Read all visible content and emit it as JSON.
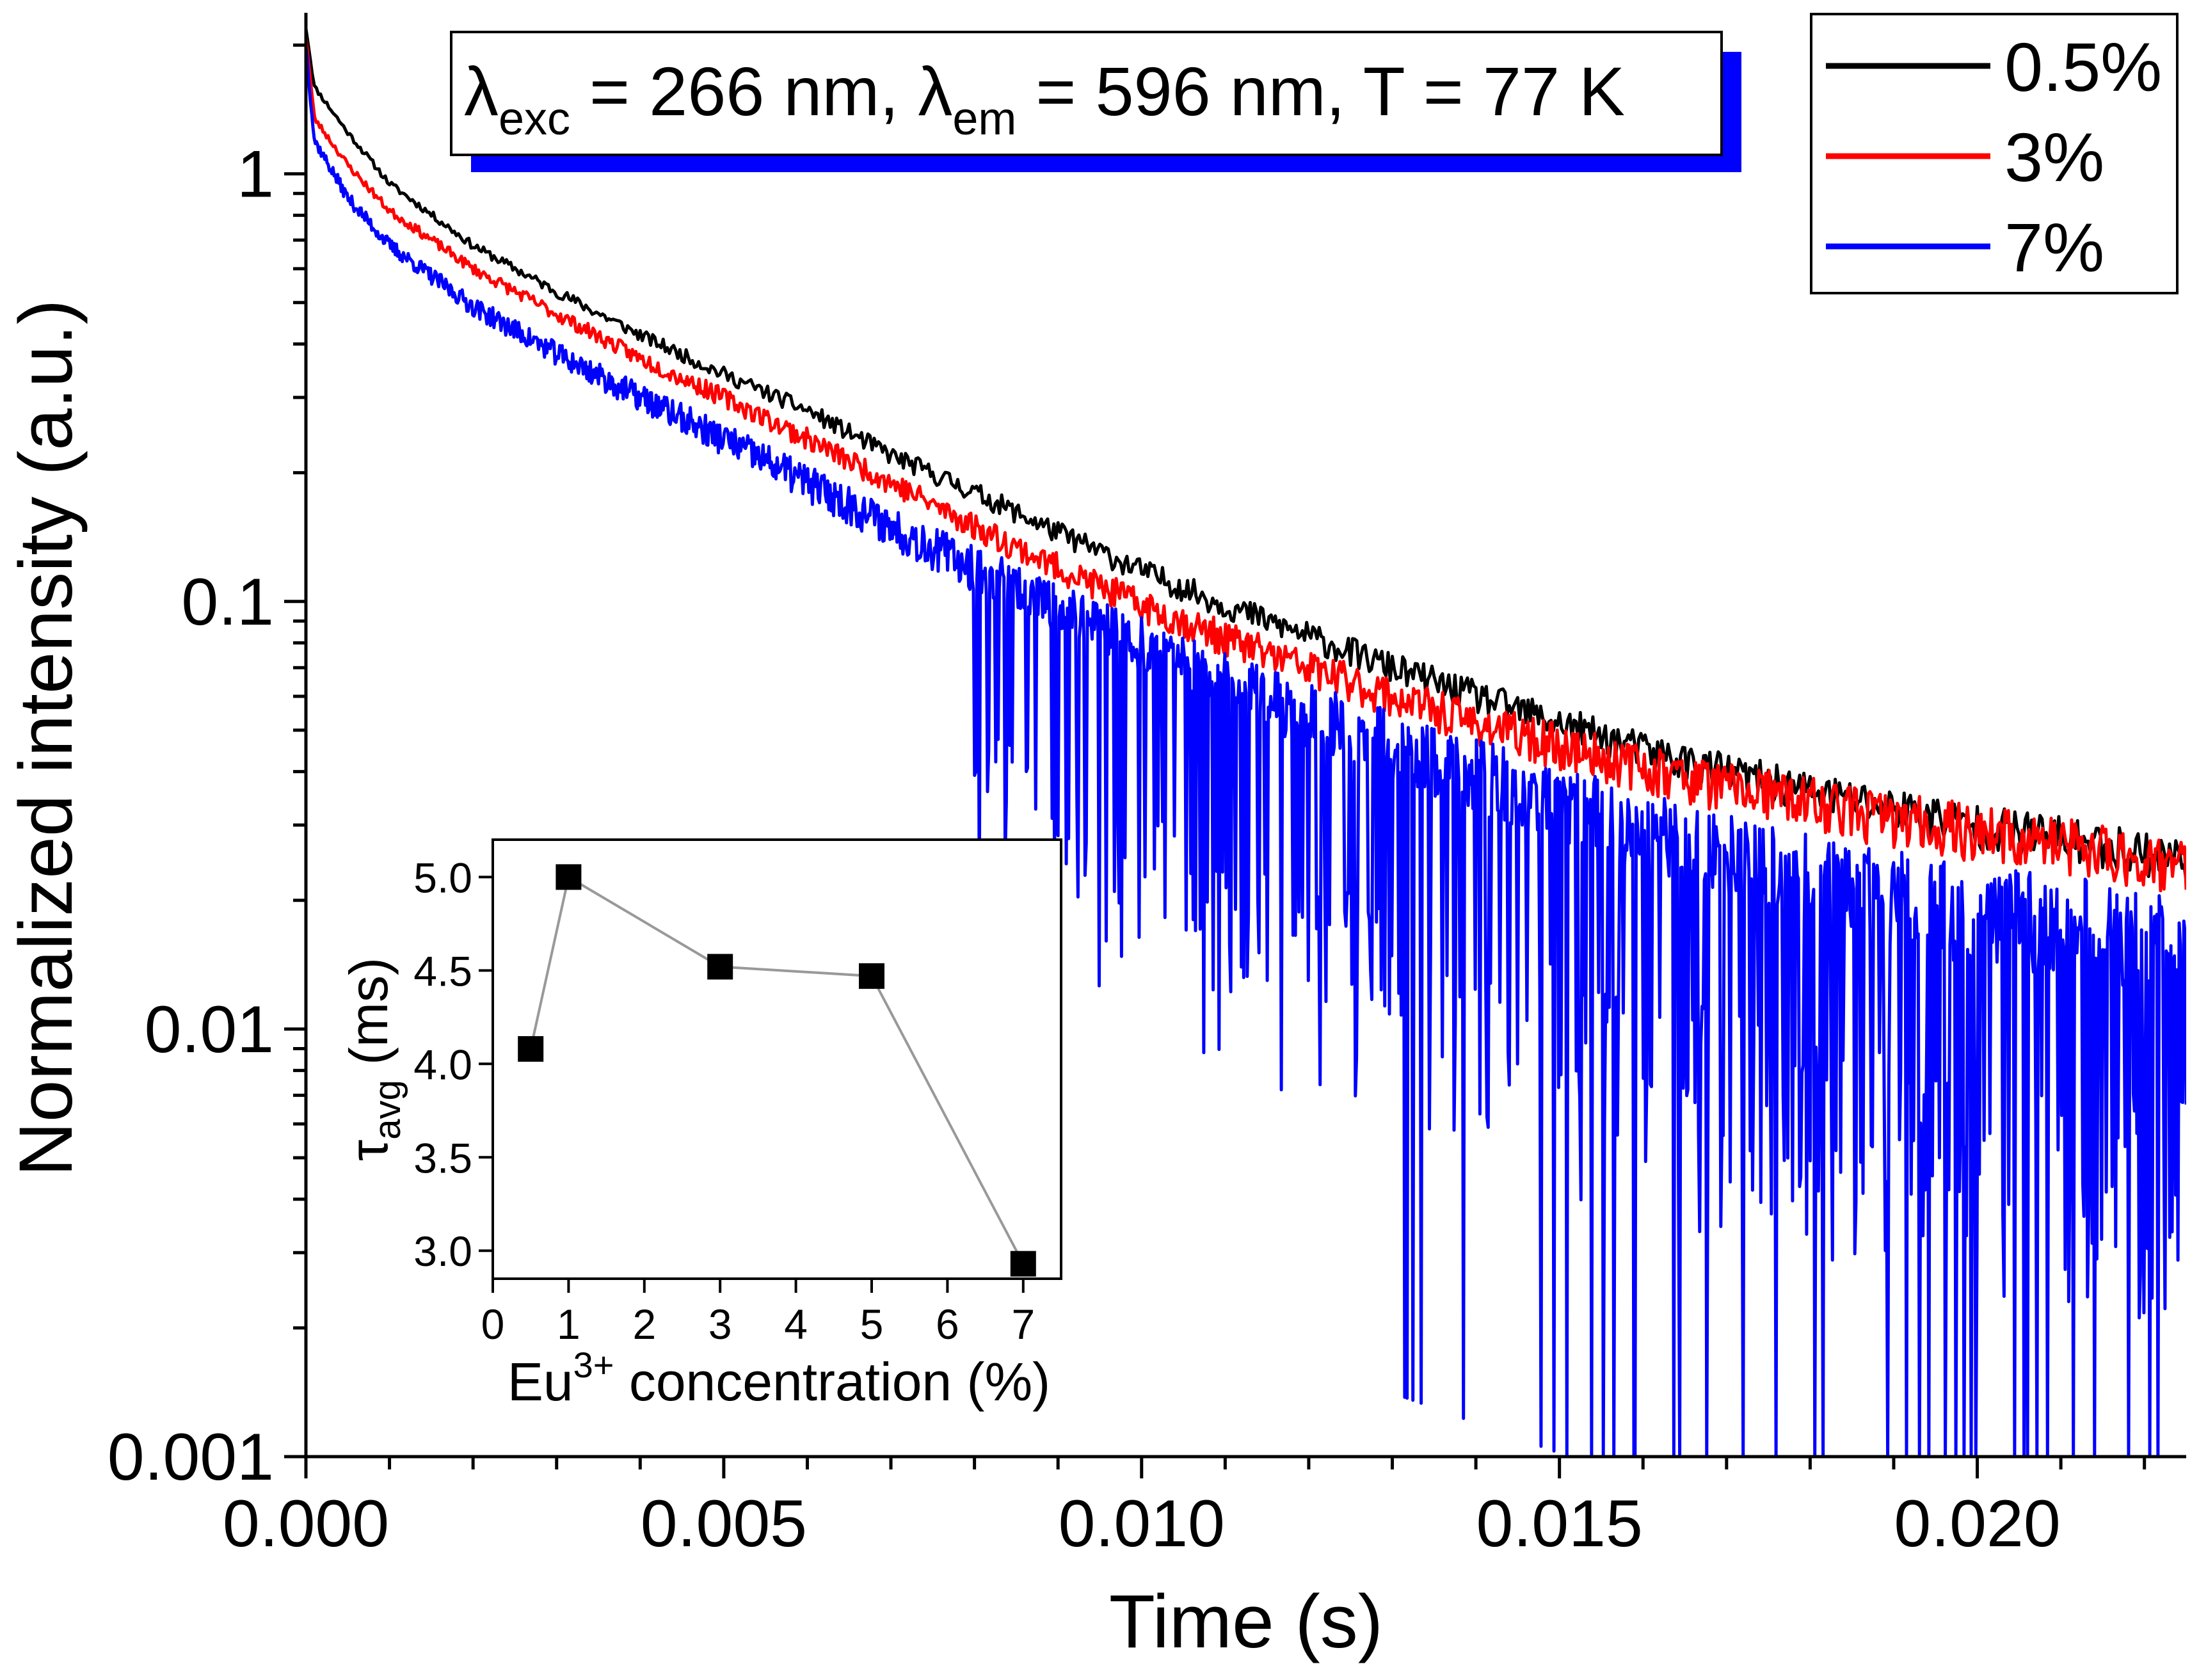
{
  "chart_data": [
    {
      "type": "line",
      "role": "main",
      "xlabel": "Time (s)",
      "ylabel": "Normalized intensity (a.u.)",
      "xlim": [
        0.0,
        0.0225
      ],
      "ylim": [
        0.001,
        2.3
      ],
      "yscale": "log",
      "grid": false,
      "x_ticks": [
        0.0,
        0.005,
        0.01,
        0.015,
        0.02
      ],
      "x_tick_labels": [
        "0.000",
        "0.005",
        "0.010",
        "0.015",
        "0.020"
      ],
      "y_ticks": [
        1,
        0.1,
        0.01,
        0.001
      ],
      "y_tick_labels": [
        "1",
        "0.1",
        "0.01",
        "0.001"
      ],
      "annotation": {
        "lambda": "λ",
        "exc_sub": "exc",
        "text_1": " = 266 nm, ",
        "em_sub": "em",
        "text_2": " = 596 nm, T = 77 K"
      },
      "legend": {
        "placement": "top-right",
        "entries": [
          "0.5%",
          "3%",
          "7%"
        ]
      },
      "series": [
        {
          "name": "0.5%",
          "color": "#000000",
          "x": [
            0.0,
            0.0001,
            0.0005,
            0.001,
            0.002,
            0.003,
            0.004,
            0.005,
            0.006,
            0.007,
            0.008,
            0.009,
            0.01,
            0.011,
            0.012,
            0.013,
            0.014,
            0.015,
            0.016,
            0.017,
            0.018,
            0.019,
            0.02,
            0.021,
            0.022,
            0.0225
          ],
          "y": [
            2.2,
            1.6,
            1.25,
            0.95,
            0.68,
            0.53,
            0.42,
            0.34,
            0.28,
            0.22,
            0.18,
            0.145,
            0.118,
            0.098,
            0.083,
            0.07,
            0.06,
            0.052,
            0.045,
            0.04,
            0.036,
            0.033,
            0.03,
            0.028,
            0.026,
            0.025
          ]
        },
        {
          "name": "3%",
          "color": "#ff0000",
          "x": [
            0.0,
            0.0001,
            0.0005,
            0.001,
            0.002,
            0.003,
            0.004,
            0.005,
            0.006,
            0.007,
            0.008,
            0.009,
            0.01,
            0.011,
            0.012,
            0.013,
            0.014,
            0.015,
            0.016,
            0.017,
            0.018,
            0.019,
            0.02,
            0.021,
            0.022,
            0.0225
          ],
          "y": [
            2.1,
            1.35,
            1.05,
            0.82,
            0.6,
            0.47,
            0.37,
            0.3,
            0.24,
            0.19,
            0.15,
            0.12,
            0.098,
            0.082,
            0.07,
            0.06,
            0.052,
            0.046,
            0.041,
            0.037,
            0.034,
            0.031,
            0.029,
            0.027,
            0.025,
            0.024
          ]
        },
        {
          "name": "7%",
          "color": "#0000ff",
          "x": [
            0.0,
            0.0001,
            0.0005,
            0.001,
            0.002,
            0.003,
            0.004,
            0.005,
            0.006,
            0.007,
            0.008,
            0.009,
            0.01,
            0.011,
            0.012,
            0.013,
            0.014,
            0.015,
            0.016,
            0.017,
            0.018,
            0.019,
            0.02,
            0.021,
            0.022,
            0.0225
          ],
          "y": [
            2.0,
            1.2,
            0.88,
            0.68,
            0.49,
            0.38,
            0.3,
            0.24,
            0.19,
            0.15,
            0.12,
            0.098,
            0.08,
            0.066,
            0.055,
            0.047,
            0.04,
            0.034,
            0.03,
            0.026,
            0.023,
            0.021,
            0.019,
            0.018,
            0.017,
            0.016
          ]
        }
      ]
    },
    {
      "type": "line",
      "role": "inset",
      "xlabel": "Eu",
      "xlabel_sup": "3+",
      "xlabel_rest": " concentration (%)",
      "ylabel": "τ",
      "ylabel_sub": "avg",
      "ylabel_rest": " (ms)",
      "xlim": [
        0,
        7.5
      ],
      "ylim": [
        2.85,
        5.2
      ],
      "x_ticks": [
        0,
        1,
        2,
        3,
        4,
        5,
        6,
        7
      ],
      "x_tick_labels": [
        "0",
        "1",
        "2",
        "3",
        "4",
        "5",
        "6",
        "7"
      ],
      "y_ticks": [
        3.0,
        3.5,
        4.0,
        4.5,
        5.0
      ],
      "y_tick_labels": [
        "3.0",
        "3.5",
        "4.0",
        "4.5",
        "5.0"
      ],
      "series": [
        {
          "name": "tau_avg",
          "color": "#000000",
          "marker": "square",
          "x": [
            0.5,
            1,
            3,
            5,
            7
          ],
          "y": [
            4.08,
            5.0,
            4.52,
            4.47,
            2.93
          ]
        }
      ]
    }
  ]
}
